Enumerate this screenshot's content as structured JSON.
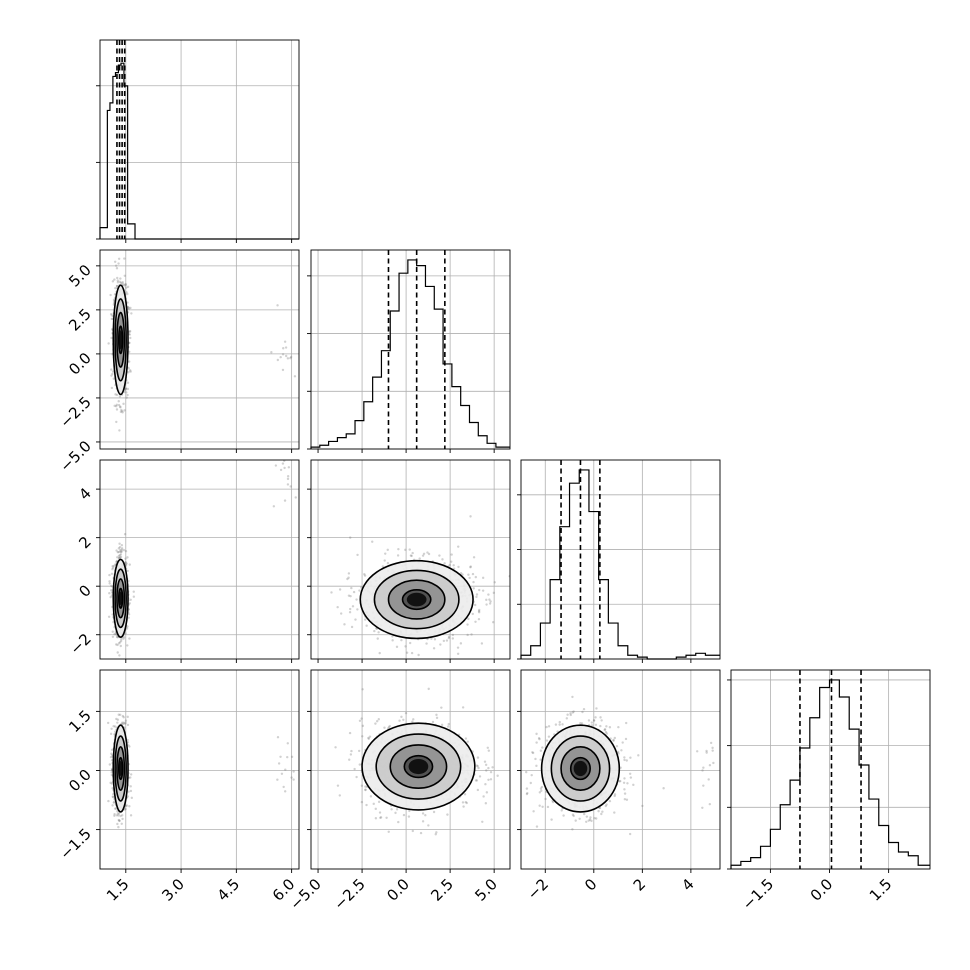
{
  "chart_data": {
    "type": "corner",
    "title": "",
    "n_params": 4,
    "axis_labels": [
      "",
      "",
      "",
      ""
    ],
    "ranges": [
      [
        0.8,
        6.2
      ],
      [
        -5.4,
        5.9
      ],
      [
        -3.0,
        5.2
      ],
      [
        -2.5,
        2.55
      ]
    ],
    "x_ticks": [
      [
        1.5,
        3.0,
        4.5,
        6.0
      ],
      [
        -5.0,
        -2.5,
        0.0,
        2.5,
        5.0
      ],
      [
        -2,
        0,
        2,
        4
      ],
      [
        -1.5,
        0.0,
        1.5
      ]
    ],
    "x_tick_labels": [
      [
        "1.5",
        "3.0",
        "4.5",
        "6.0"
      ],
      [
        "−5.0",
        "−2.5",
        "0.0",
        "2.5",
        "5.0"
      ],
      [
        "−2",
        "0",
        "2",
        "4"
      ],
      [
        "−1.5",
        "0.0",
        "1.5"
      ]
    ],
    "y_ticks": {
      "1": [
        -5.0,
        -2.5,
        0.0,
        2.5,
        5.0
      ],
      "2": [
        -2,
        0,
        2,
        4
      ],
      "3": [
        -1.5,
        0.0,
        1.5
      ]
    },
    "y_tick_labels": {
      "1": [
        "−5.0",
        "−2.5",
        "0.0",
        "2.5",
        "5.0"
      ],
      "2": [
        "−2",
        "0",
        "2",
        "4"
      ],
      "3": [
        "−1.5",
        "0.0",
        "1.5"
      ]
    },
    "diag_y_tick_fractions": [
      [
        0.0,
        0.385,
        0.77
      ],
      [
        0.0,
        0.29,
        0.58,
        0.87
      ],
      [
        0.0,
        0.275,
        0.55,
        0.825
      ],
      [
        0.0,
        0.31,
        0.62,
        0.95
      ]
    ],
    "marginals": [
      {
        "bin_edges": [
          0.8,
          1.0,
          1.07,
          1.15,
          1.22,
          1.3,
          1.37,
          1.45,
          1.55,
          1.75,
          6.2
        ],
        "heights": [
          0.06,
          0.68,
          0.72,
          0.86,
          0.88,
          0.92,
          0.93,
          0.81,
          0.08,
          0.0
        ],
        "quantiles": [
          1.26,
          1.33,
          1.4,
          1.47
        ]
      },
      {
        "bin_edges": [
          -5.4,
          -4.9,
          -4.4,
          -3.9,
          -3.4,
          -2.9,
          -2.4,
          -1.9,
          -1.4,
          -0.9,
          -0.4,
          0.1,
          0.6,
          1.1,
          1.6,
          2.1,
          2.6,
          3.1,
          3.6,
          4.1,
          4.6,
          5.1,
          5.9
        ],
        "heights": [
          0.01,
          0.02,
          0.04,
          0.06,
          0.08,
          0.15,
          0.25,
          0.38,
          0.52,
          0.73,
          0.93,
          1.0,
          0.97,
          0.86,
          0.74,
          0.45,
          0.33,
          0.23,
          0.14,
          0.07,
          0.03,
          0.01
        ],
        "quantiles": [
          -1.0,
          0.6,
          2.2
        ]
      },
      {
        "bin_edges": [
          -3.0,
          -2.6,
          -2.2,
          -1.8,
          -1.4,
          -1.0,
          -0.6,
          -0.2,
          0.2,
          0.6,
          1.0,
          1.4,
          1.8,
          2.2,
          2.6,
          3.0,
          3.4,
          3.8,
          4.2,
          4.6,
          5.2
        ],
        "heights": [
          0.02,
          0.07,
          0.19,
          0.42,
          0.7,
          0.93,
          1.0,
          0.78,
          0.42,
          0.19,
          0.07,
          0.02,
          0.01,
          0.0,
          0.0,
          0.0,
          0.01,
          0.02,
          0.03,
          0.02
        ],
        "quantiles": [
          -1.35,
          -0.55,
          0.25
        ]
      },
      {
        "bin_edges": [
          -2.5,
          -2.25,
          -2.0,
          -1.75,
          -1.5,
          -1.25,
          -1.0,
          -0.75,
          -0.5,
          -0.25,
          0.0,
          0.25,
          0.5,
          0.75,
          1.0,
          1.25,
          1.5,
          1.75,
          2.0,
          2.25,
          2.55
        ],
        "heights": [
          0.02,
          0.04,
          0.06,
          0.12,
          0.21,
          0.34,
          0.47,
          0.64,
          0.8,
          0.96,
          1.0,
          0.91,
          0.74,
          0.55,
          0.37,
          0.23,
          0.14,
          0.09,
          0.07,
          0.02
        ],
        "quantiles": [
          -0.75,
          0.05,
          0.8
        ]
      }
    ],
    "joints": [
      {
        "row": 1,
        "col": 0,
        "mean": [
          1.36,
          0.8
        ],
        "sd": [
          0.1,
          1.55
        ],
        "rho": 0.0,
        "outlier_center": [
          5.8,
          0.2
        ]
      },
      {
        "row": 2,
        "col": 0,
        "mean": [
          1.36,
          -0.5
        ],
        "sd": [
          0.1,
          0.8
        ],
        "rho": 0.0,
        "outlier_center": [
          5.8,
          4.5
        ]
      },
      {
        "row": 2,
        "col": 1,
        "mean": [
          0.6,
          -0.55
        ],
        "sd": [
          1.6,
          0.8
        ],
        "rho": 0.0
      },
      {
        "row": 3,
        "col": 0,
        "mean": [
          1.36,
          0.05
        ],
        "sd": [
          0.1,
          0.55
        ],
        "rho": 0.0,
        "outlier_center": [
          5.8,
          0.1
        ]
      },
      {
        "row": 3,
        "col": 1,
        "mean": [
          0.7,
          0.1
        ],
        "sd": [
          1.6,
          0.55
        ],
        "rho": 0.0
      },
      {
        "row": 3,
        "col": 2,
        "mean": [
          -0.55,
          0.05
        ],
        "sd": [
          0.8,
          0.55
        ],
        "rho": 0.0,
        "outlier_center": [
          4.8,
          0.0
        ]
      }
    ],
    "contour_levels": [
      0.118,
      0.393,
      0.675,
      0.865
    ],
    "grid": true,
    "histogram_style": "step",
    "quantile_line_style": "dashed"
  }
}
